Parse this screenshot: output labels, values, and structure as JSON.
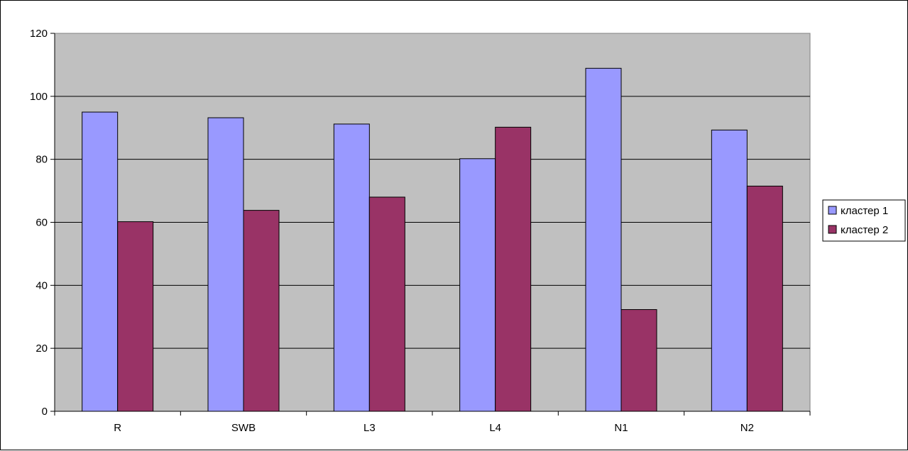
{
  "chart_data": {
    "type": "bar",
    "title": "",
    "xlabel": "",
    "ylabel": "",
    "categories": [
      "R",
      "SWB",
      "L3",
      "L4",
      "N1",
      "N2"
    ],
    "series": [
      {
        "name": "кластер 1",
        "values": [
          95,
          93.2,
          91.2,
          80.2,
          108.9,
          89.3
        ]
      },
      {
        "name": "кластер 2",
        "values": [
          60.2,
          63.8,
          68,
          90.2,
          32.3,
          71.5
        ]
      }
    ],
    "ylim": [
      0,
      120
    ],
    "yticks": [
      0,
      20,
      40,
      60,
      80,
      100,
      120
    ],
    "grid": true,
    "legend_position": "right",
    "colors": {
      "plot_background": "#c0c0c0",
      "series": [
        "#9999ff",
        "#993366"
      ],
      "gridline": "#000000"
    }
  }
}
